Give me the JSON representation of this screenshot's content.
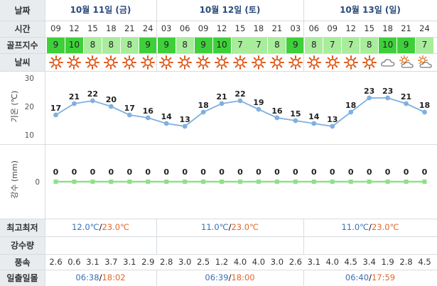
{
  "row_labels": {
    "date": "날짜",
    "time": "시간",
    "golf": "골프지수",
    "weather": "날씨",
    "temp": "기온 (℃)",
    "precip": "강수 (mm)",
    "minmax": "최고최저",
    "rainfall": "강수량",
    "wind": "풍속",
    "sun": "일출일몰"
  },
  "days": [
    {
      "label": "10월 11일 (금)",
      "min": "12.0℃",
      "max": "23.0℃",
      "sunrise": "06:38",
      "sunset": "18:02"
    },
    {
      "label": "10월 12일 (토)",
      "min": "11.0℃",
      "max": "23.0℃",
      "sunrise": "06:39",
      "sunset": "18:00"
    },
    {
      "label": "10월 13일 (일)",
      "min": "11.0℃",
      "max": "23.0℃",
      "sunrise": "06:40",
      "sunset": "17:59"
    }
  ],
  "hours": [
    "09",
    "12",
    "15",
    "18",
    "21",
    "24",
    "03",
    "06",
    "09",
    "12",
    "15",
    "18",
    "21",
    "03",
    "06",
    "09",
    "12",
    "15",
    "18",
    "21",
    "24"
  ],
  "golf_index": [
    9,
    10,
    8,
    8,
    8,
    9,
    9,
    8,
    9,
    10,
    7,
    7,
    8,
    9,
    8,
    7,
    7,
    8,
    10,
    9,
    7
  ],
  "weather_icons": [
    "sun-icon",
    "sun-icon",
    "sun-icon",
    "sun-icon",
    "sun-icon",
    "sun-icon",
    "sun-icon",
    "sun-icon",
    "sun-icon",
    "sun-icon",
    "sun-icon",
    "sun-icon",
    "sun-icon",
    "sun-icon",
    "sun-icon",
    "sun-icon",
    "sun-icon",
    "sun-icon",
    "cloud-icon",
    "partly-cloudy-icon",
    "partly-cloudy-icon"
  ],
  "wind": [
    "2.6",
    "0.6",
    "3.1",
    "3.7",
    "3.1",
    "2.9",
    "2.8",
    "3.0",
    "2.5",
    "1.2",
    "4.0",
    "4.0",
    "3.0",
    "2.6",
    "3.1",
    "4.0",
    "4.5",
    "3.4",
    "1.9",
    "2.8",
    "4.5"
  ],
  "colors": {
    "golf_high": "#3fcf3a",
    "golf_mid": "#a8ec9c",
    "line": "#7fb0e0",
    "precip": "#8fe08a",
    "min_text": "#3a6fb5",
    "max_text": "#e0682c"
  },
  "chart_data": [
    {
      "type": "line",
      "ylabel": "기온 (℃)",
      "y_ticks": [
        "30",
        "20",
        "10"
      ],
      "ylim": [
        10,
        30
      ],
      "categories": [
        "09",
        "12",
        "15",
        "18",
        "21",
        "24",
        "03",
        "06",
        "09",
        "12",
        "15",
        "18",
        "21",
        "03",
        "06",
        "09",
        "12",
        "15",
        "18",
        "21",
        "24"
      ],
      "values": [
        17,
        21,
        22,
        20,
        17,
        16,
        14,
        13,
        18,
        21,
        22,
        19,
        16,
        15,
        14,
        13,
        18,
        23,
        23,
        21,
        18
      ]
    },
    {
      "type": "line",
      "ylabel": "강수 (mm)",
      "y_ticks": [
        "0"
      ],
      "categories": [
        "09",
        "12",
        "15",
        "18",
        "21",
        "24",
        "03",
        "06",
        "09",
        "12",
        "15",
        "18",
        "21",
        "03",
        "06",
        "09",
        "12",
        "15",
        "18",
        "21",
        "24"
      ],
      "values": [
        0,
        0,
        0,
        0,
        0,
        0,
        0,
        0,
        0,
        0,
        0,
        0,
        0,
        0,
        0,
        0,
        0,
        0,
        0,
        0,
        0
      ]
    }
  ]
}
